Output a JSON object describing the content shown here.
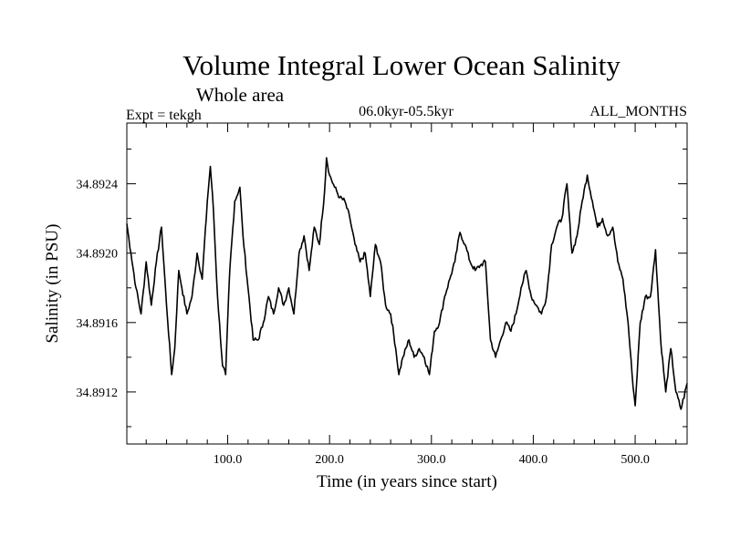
{
  "chart_data": {
    "type": "line",
    "title": "Volume Integral Lower Ocean Salinity",
    "subtitle": "Whole area",
    "experiment": "Expt = tekgh",
    "period": "06.0kyr-05.5kyr",
    "months": "ALL_MONTHS",
    "xlabel": "Time (in years since start)",
    "ylabel": "Salinity (in PSU)",
    "xlim": [
      1,
      551
    ],
    "ylim": [
      34.8909,
      34.89275
    ],
    "xticks": [
      100,
      200,
      300,
      400,
      500
    ],
    "xtick_labels": [
      "100.0",
      "200.0",
      "300.0",
      "400.0",
      "500.0"
    ],
    "yticks": [
      34.8912,
      34.8916,
      34.892,
      34.8924
    ],
    "ytick_labels": [
      "34.8912",
      "34.8916",
      "34.8920",
      "34.8924"
    ],
    "grid": false,
    "series": [
      {
        "name": "Salinity",
        "x": [
          1,
          5,
          10,
          15,
          20,
          25,
          30,
          35,
          40,
          45,
          48,
          52,
          55,
          60,
          65,
          70,
          75,
          80,
          83,
          86,
          90,
          95,
          98,
          102,
          107,
          112,
          115,
          120,
          125,
          130,
          135,
          140,
          145,
          150,
          155,
          160,
          165,
          170,
          175,
          180,
          185,
          190,
          195,
          197,
          200,
          205,
          210,
          215,
          220,
          225,
          230,
          235,
          240,
          245,
          250,
          255,
          260,
          265,
          268,
          272,
          278,
          283,
          288,
          293,
          298,
          303,
          308,
          313,
          318,
          323,
          328,
          333,
          338,
          343,
          348,
          353,
          358,
          363,
          368,
          373,
          378,
          383,
          388,
          393,
          398,
          403,
          408,
          413,
          418,
          423,
          428,
          433,
          438,
          443,
          448,
          453,
          458,
          463,
          468,
          473,
          478,
          483,
          488,
          493,
          497,
          500,
          505,
          510,
          515,
          520,
          525,
          530,
          535,
          540,
          545,
          551
        ],
        "values": [
          34.89217,
          34.892,
          34.8918,
          34.89165,
          34.89195,
          34.8917,
          34.89195,
          34.89215,
          34.8917,
          34.8913,
          34.89145,
          34.8919,
          34.8918,
          34.89165,
          34.89175,
          34.892,
          34.89185,
          34.8923,
          34.8925,
          34.89225,
          34.89175,
          34.89135,
          34.8913,
          34.8919,
          34.8923,
          34.89238,
          34.8921,
          34.8918,
          34.8915,
          34.8915,
          34.8916,
          34.89175,
          34.89165,
          34.8918,
          34.8917,
          34.8918,
          34.89165,
          34.892,
          34.8921,
          34.8919,
          34.89215,
          34.89205,
          34.89235,
          34.89255,
          34.89245,
          34.89238,
          34.89232,
          34.8923,
          34.8922,
          34.89205,
          34.89195,
          34.892,
          34.89175,
          34.89205,
          34.89195,
          34.8917,
          34.89165,
          34.89145,
          34.8913,
          34.8914,
          34.8915,
          34.8914,
          34.89145,
          34.8914,
          34.8913,
          34.89155,
          34.8916,
          34.89175,
          34.89185,
          34.89195,
          34.89212,
          34.89205,
          34.89195,
          34.8919,
          34.89193,
          34.89195,
          34.8915,
          34.8914,
          34.8915,
          34.8916,
          34.89155,
          34.89165,
          34.8918,
          34.8919,
          34.89175,
          34.8917,
          34.89165,
          34.89175,
          34.89205,
          34.89215,
          34.8922,
          34.8924,
          34.892,
          34.8921,
          34.8923,
          34.89245,
          34.8923,
          34.89215,
          34.8922,
          34.8921,
          34.89215,
          34.89195,
          34.89185,
          34.8916,
          34.8913,
          34.89112,
          34.8916,
          34.89175,
          34.89175,
          34.89202,
          34.8915,
          34.8912,
          34.89145,
          34.8912,
          34.8911,
          34.89125
        ]
      }
    ]
  }
}
